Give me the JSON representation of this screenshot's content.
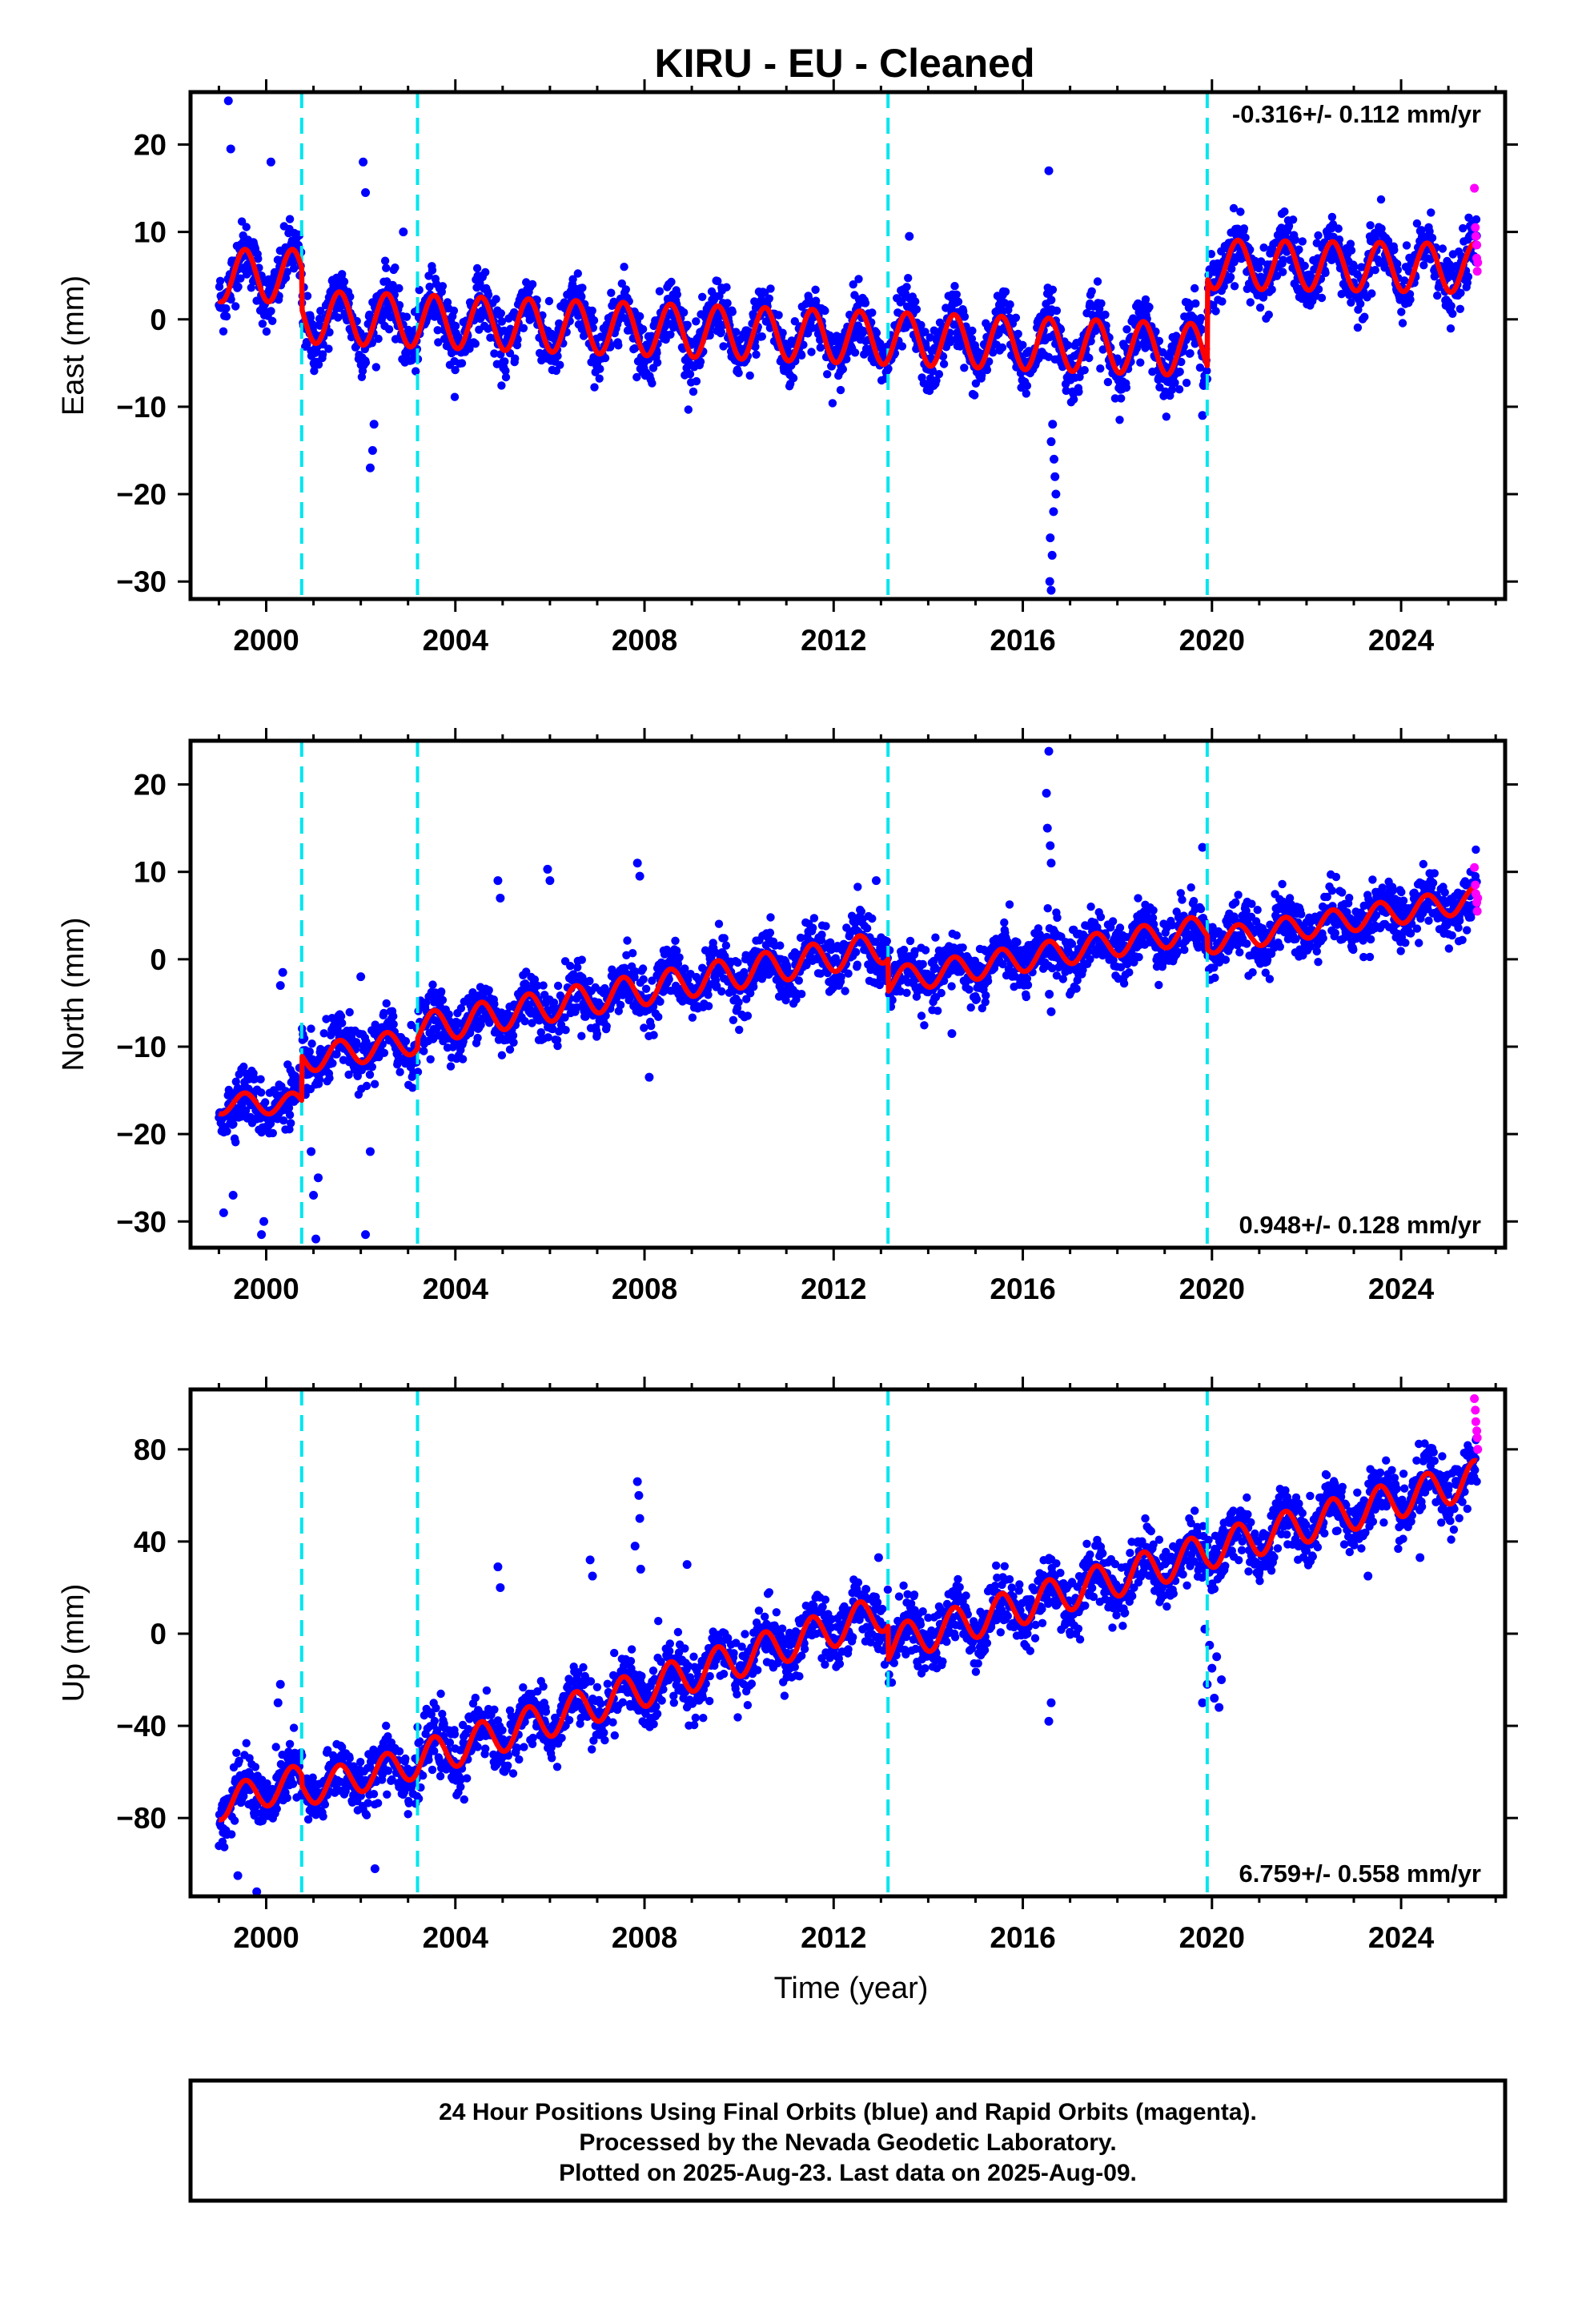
{
  "title": "KIRU  - EU - Cleaned",
  "xlabel": "Time (year)",
  "footer": [
    "24 Hour Positions Using Final Orbits (blue) and Rapid Orbits (magenta).",
    "Processed by the Nevada Geodetic Laboratory.",
    "Plotted on 2025-Aug-23. Last data on 2025-Aug-09."
  ],
  "colors": {
    "final_orbits": "#0000ff",
    "rapid_orbits": "#ff00ff",
    "model": "#ff0000",
    "steps": "#00e5ee",
    "frame": "#000000"
  },
  "chart_data": [
    {
      "type": "scatter",
      "ylabel": "East (mm)",
      "rate_text": "-0.316+/- 0.112 mm/yr",
      "rate_position": "top-right",
      "xlim": [
        1998.4,
        2026.2
      ],
      "ylim": [
        -32,
        26
      ],
      "xticks": [
        2000,
        2004,
        2008,
        2012,
        2016,
        2020,
        2024
      ],
      "xtick_labels": [
        "2000",
        "2004",
        "2008",
        "2012",
        "2016",
        "2020",
        "2024"
      ],
      "yticks": [
        -30,
        -20,
        -10,
        0,
        10,
        20
      ],
      "ytick_labels": [
        "−30",
        "−20",
        "−10",
        "0",
        "10",
        "20"
      ],
      "step_epochs": [
        2000.75,
        2003.2,
        2013.15,
        2019.9
      ],
      "data_span": [
        1999.0,
        2025.6
      ],
      "model": {
        "segments": [
          {
            "start": 1999.0,
            "end": 2000.75,
            "offset": 5.0,
            "slope": 0.0,
            "annual": 3.0
          },
          {
            "start": 2000.75,
            "end": 2019.9,
            "offset": 0.3,
            "slope": -0.2,
            "annual": 3.0
          },
          {
            "start": 2019.9,
            "end": 2025.6,
            "offset": 6.3,
            "slope": -0.08,
            "annual": 2.8
          }
        ],
        "scatter_sd": 1.7
      },
      "outliers": [
        {
          "x": 1999.2,
          "y": 25.0
        },
        {
          "x": 1999.25,
          "y": 19.5
        },
        {
          "x": 2000.1,
          "y": 18.0
        },
        {
          "x": 2002.05,
          "y": 18.0
        },
        {
          "x": 2002.1,
          "y": 14.5
        },
        {
          "x": 2002.2,
          "y": -17.0
        },
        {
          "x": 2002.25,
          "y": -15.0
        },
        {
          "x": 2002.28,
          "y": -12.0
        },
        {
          "x": 2002.9,
          "y": 10.0
        },
        {
          "x": 2016.55,
          "y": 17.0
        },
        {
          "x": 2016.6,
          "y": -31.0
        },
        {
          "x": 2016.62,
          "y": -27.0
        },
        {
          "x": 2016.65,
          "y": -22.0
        },
        {
          "x": 2016.68,
          "y": -18.0
        },
        {
          "x": 2016.63,
          "y": -12.0
        },
        {
          "x": 2016.57,
          "y": -30.0
        },
        {
          "x": 2016.58,
          "y": -25.0
        },
        {
          "x": 2016.7,
          "y": -20.0
        },
        {
          "x": 2016.6,
          "y": -14.0
        },
        {
          "x": 2016.66,
          "y": -16.0
        },
        {
          "x": 2019.8,
          "y": -11.0
        },
        {
          "x": 2013.6,
          "y": 9.5
        }
      ],
      "rapid_points": [
        {
          "x": 2025.55,
          "y": 15.0
        },
        {
          "x": 2025.57,
          "y": 10.5
        },
        {
          "x": 2025.58,
          "y": 9.5
        },
        {
          "x": 2025.6,
          "y": 8.5
        },
        {
          "x": 2025.6,
          "y": 7.0
        },
        {
          "x": 2025.61,
          "y": 5.5
        },
        {
          "x": 2025.62,
          "y": 6.5
        }
      ]
    },
    {
      "type": "scatter",
      "ylabel": "North (mm)",
      "rate_text": "0.948+/- 0.128 mm/yr",
      "rate_position": "bottom-right",
      "xlim": [
        1998.4,
        2026.2
      ],
      "ylim": [
        -33,
        25
      ],
      "xticks": [
        2000,
        2004,
        2008,
        2012,
        2016,
        2020,
        2024
      ],
      "xtick_labels": [
        "2000",
        "2004",
        "2008",
        "2012",
        "2016",
        "2020",
        "2024"
      ],
      "yticks": [
        -30,
        -20,
        -10,
        0,
        10,
        20
      ],
      "ytick_labels": [
        "−30",
        "−20",
        "−10",
        "0",
        "10",
        "20"
      ],
      "step_epochs": [
        2000.75,
        2003.2,
        2013.15,
        2019.9
      ],
      "data_span": [
        1999.0,
        2025.6
      ],
      "model": {
        "segments": [
          {
            "start": 1999.0,
            "end": 2000.75,
            "offset": -16.5,
            "slope": 0.0,
            "annual": 1.2
          },
          {
            "start": 2000.75,
            "end": 2003.2,
            "offset": -11.5,
            "slope": 0.9,
            "annual": 1.5
          },
          {
            "start": 2003.2,
            "end": 2013.15,
            "offset": -8.0,
            "slope": 0.95,
            "annual": 1.8
          },
          {
            "start": 2013.15,
            "end": 2019.9,
            "offset": -2.5,
            "slope": 0.9,
            "annual": 1.5
          },
          {
            "start": 2019.9,
            "end": 2025.6,
            "offset": 2.0,
            "slope": 0.85,
            "annual": 1.4
          }
        ],
        "scatter_sd": 1.6
      },
      "outliers": [
        {
          "x": 1999.1,
          "y": -29.0
        },
        {
          "x": 1999.3,
          "y": -27.0
        },
        {
          "x": 1999.9,
          "y": -31.5
        },
        {
          "x": 1999.95,
          "y": -30.0
        },
        {
          "x": 2000.3,
          "y": -3.0
        },
        {
          "x": 2000.35,
          "y": -1.5
        },
        {
          "x": 2000.95,
          "y": -22.0
        },
        {
          "x": 2001.0,
          "y": -27.0
        },
        {
          "x": 2001.05,
          "y": -32.0
        },
        {
          "x": 2001.1,
          "y": -25.0
        },
        {
          "x": 2002.1,
          "y": -31.5
        },
        {
          "x": 2002.2,
          "y": -22.0
        },
        {
          "x": 2002.0,
          "y": -2.0
        },
        {
          "x": 2004.9,
          "y": 9.0
        },
        {
          "x": 2004.95,
          "y": 7.0
        },
        {
          "x": 2005.95,
          "y": 10.3
        },
        {
          "x": 2006.0,
          "y": 9.0
        },
        {
          "x": 2007.85,
          "y": 11.0
        },
        {
          "x": 2007.9,
          "y": 9.5
        },
        {
          "x": 2008.1,
          "y": -13.5
        },
        {
          "x": 2012.9,
          "y": 9.0
        },
        {
          "x": 2016.55,
          "y": 23.8
        },
        {
          "x": 2016.5,
          "y": 19.0
        },
        {
          "x": 2016.52,
          "y": 15.0
        },
        {
          "x": 2016.58,
          "y": 13.0
        },
        {
          "x": 2016.6,
          "y": 11.0
        },
        {
          "x": 2016.56,
          "y": -4.0
        },
        {
          "x": 2016.6,
          "y": -6.0
        },
        {
          "x": 2019.8,
          "y": 12.8
        },
        {
          "x": 2014.5,
          "y": -8.5
        }
      ],
      "rapid_points": [
        {
          "x": 2025.55,
          "y": 10.5
        },
        {
          "x": 2025.57,
          "y": 8.5
        },
        {
          "x": 2025.58,
          "y": 7.5
        },
        {
          "x": 2025.6,
          "y": 6.5
        },
        {
          "x": 2025.61,
          "y": 5.5
        },
        {
          "x": 2025.62,
          "y": 7.0
        }
      ]
    },
    {
      "type": "scatter",
      "ylabel": "Up (mm)",
      "rate_text": "6.759+/- 0.558 mm/yr",
      "rate_position": "bottom-right",
      "xlim": [
        1998.4,
        2026.2
      ],
      "ylim": [
        -114,
        106
      ],
      "xticks": [
        2000,
        2004,
        2008,
        2012,
        2016,
        2020,
        2024
      ],
      "xtick_labels": [
        "2000",
        "2004",
        "2008",
        "2012",
        "2016",
        "2020",
        "2024"
      ],
      "yticks": [
        -80,
        -40,
        0,
        40,
        80
      ],
      "ytick_labels": [
        "−80",
        "−40",
        "0",
        "40",
        "80"
      ],
      "step_epochs": [
        2000.75,
        2003.2,
        2013.15,
        2019.9
      ],
      "data_span": [
        1999.0,
        2025.6
      ],
      "model": {
        "segments": [
          {
            "start": 1999.0,
            "end": 2000.75,
            "offset": -74.0,
            "slope": 6.0,
            "annual": 7.0
          },
          {
            "start": 2000.75,
            "end": 2003.2,
            "offset": -68.0,
            "slope": 5.0,
            "annual": 7.0
          },
          {
            "start": 2003.2,
            "end": 2013.15,
            "offset": -55.0,
            "slope": 6.5,
            "annual": 8.0
          },
          {
            "start": 2013.15,
            "end": 2019.9,
            "offset": -5.0,
            "slope": 6.0,
            "annual": 8.0
          },
          {
            "start": 2019.9,
            "end": 2025.6,
            "offset": 36.0,
            "slope": 5.5,
            "annual": 8.0
          }
        ],
        "scatter_sd": 6.5
      },
      "outliers": [
        {
          "x": 1999.8,
          "y": -112.0
        },
        {
          "x": 1999.4,
          "y": -105.0
        },
        {
          "x": 2000.3,
          "y": -22.0
        },
        {
          "x": 2000.25,
          "y": -30.0
        },
        {
          "x": 2002.3,
          "y": -102.0
        },
        {
          "x": 2004.9,
          "y": 29.0
        },
        {
          "x": 2004.95,
          "y": 20.0
        },
        {
          "x": 2006.85,
          "y": 32.0
        },
        {
          "x": 2006.9,
          "y": 25.0
        },
        {
          "x": 2007.85,
          "y": 66.0
        },
        {
          "x": 2007.88,
          "y": 60.0
        },
        {
          "x": 2007.9,
          "y": 50.0
        },
        {
          "x": 2007.8,
          "y": 38.0
        },
        {
          "x": 2007.92,
          "y": 28.0
        },
        {
          "x": 2008.9,
          "y": 30.0
        },
        {
          "x": 2012.95,
          "y": 33.0
        },
        {
          "x": 2016.55,
          "y": -38.0
        },
        {
          "x": 2016.6,
          "y": -30.0
        },
        {
          "x": 2019.8,
          "y": -30.0
        },
        {
          "x": 2019.9,
          "y": -22.0
        },
        {
          "x": 2020.0,
          "y": -15.0
        },
        {
          "x": 2020.05,
          "y": -28.0
        },
        {
          "x": 2020.1,
          "y": -10.0
        },
        {
          "x": 2019.95,
          "y": -5.0
        },
        {
          "x": 2020.15,
          "y": -32.0
        },
        {
          "x": 2019.85,
          "y": 2.0
        },
        {
          "x": 2020.2,
          "y": -20.0
        },
        {
          "x": 2023.3,
          "y": 25.0
        },
        {
          "x": 2024.4,
          "y": 33.0
        }
      ],
      "rapid_points": [
        {
          "x": 2025.55,
          "y": 102.0
        },
        {
          "x": 2025.57,
          "y": 97.0
        },
        {
          "x": 2025.58,
          "y": 92.0
        },
        {
          "x": 2025.6,
          "y": 88.0
        },
        {
          "x": 2025.61,
          "y": 85.0
        },
        {
          "x": 2025.62,
          "y": 80.0
        }
      ]
    }
  ]
}
